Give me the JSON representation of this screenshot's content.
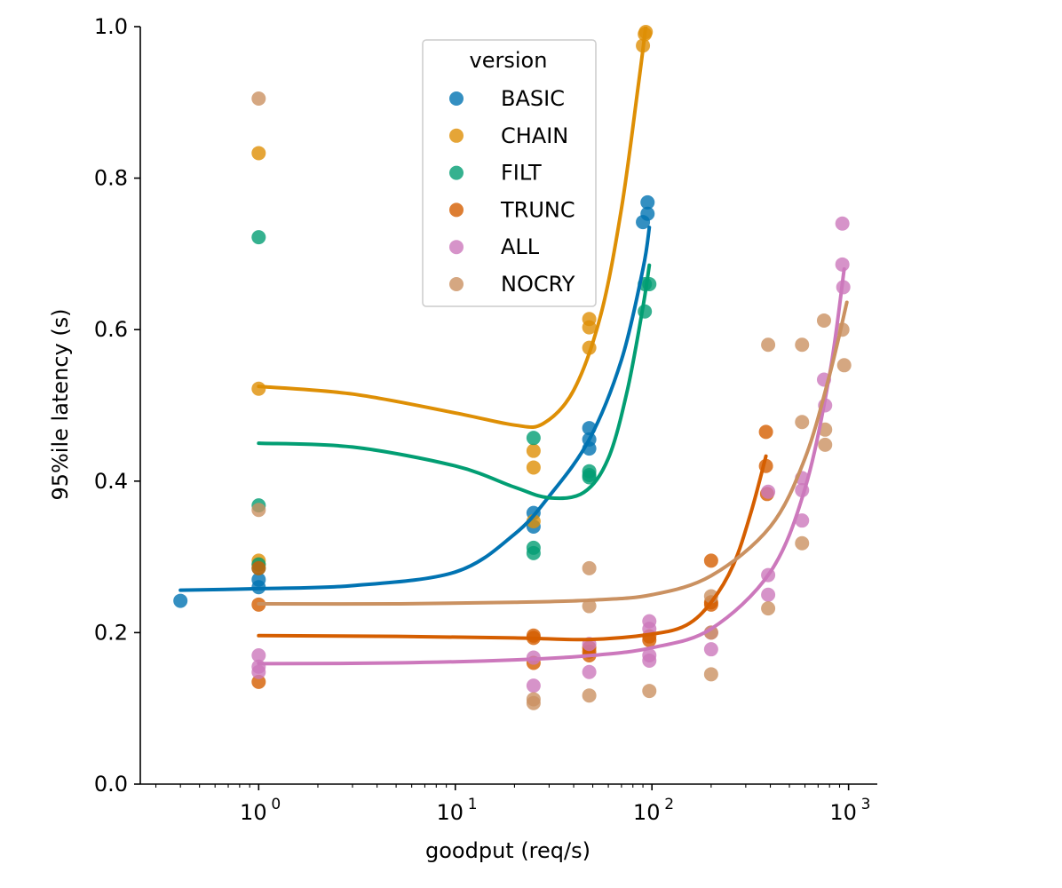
{
  "chart_data": {
    "type": "scatter",
    "title": "",
    "xlabel": "goodput (req/s)",
    "ylabel": "95%ile latency (s)",
    "xscale": "log",
    "xlim": [
      0.25,
      1400
    ],
    "ylim": [
      0,
      1.0
    ],
    "x_ticks": [
      {
        "value": 1,
        "base": "10",
        "exp": "0"
      },
      {
        "value": 10,
        "base": "10",
        "exp": "1"
      },
      {
        "value": 100,
        "base": "10",
        "exp": "2"
      },
      {
        "value": 1000,
        "base": "10",
        "exp": "3"
      }
    ],
    "y_ticks": [
      {
        "value": 0.0,
        "label": "0.0"
      },
      {
        "value": 0.2,
        "label": "0.2"
      },
      {
        "value": 0.4,
        "label": "0.4"
      },
      {
        "value": 0.6,
        "label": "0.6"
      },
      {
        "value": 0.8,
        "label": "0.8"
      },
      {
        "value": 1.0,
        "label": "1.0"
      }
    ],
    "grid": false,
    "legend": {
      "title": "version",
      "placement": "top-center"
    },
    "series": [
      {
        "name": "BASIC",
        "color": "#0173b2",
        "points": [
          [
            0.4,
            0.242
          ],
          [
            1,
            0.27
          ],
          [
            1,
            0.26
          ],
          [
            25,
            0.358
          ],
          [
            25,
            0.34
          ],
          [
            48,
            0.47
          ],
          [
            48,
            0.455
          ],
          [
            48,
            0.443
          ],
          [
            90,
            0.742
          ],
          [
            95,
            0.768
          ],
          [
            95,
            0.753
          ]
        ],
        "fit": [
          [
            0.4,
            0.256
          ],
          [
            1,
            0.258
          ],
          [
            3,
            0.262
          ],
          [
            10,
            0.28
          ],
          [
            20,
            0.33
          ],
          [
            30,
            0.38
          ],
          [
            48,
            0.455
          ],
          [
            70,
            0.56
          ],
          [
            90,
            0.68
          ],
          [
            97,
            0.735
          ]
        ]
      },
      {
        "name": "CHAIN",
        "color": "#de8f05",
        "points": [
          [
            1,
            0.833
          ],
          [
            1,
            0.522
          ],
          [
            1,
            0.295
          ],
          [
            1,
            0.29
          ],
          [
            25,
            0.44
          ],
          [
            25,
            0.418
          ],
          [
            25,
            0.347
          ],
          [
            48,
            0.614
          ],
          [
            48,
            0.603
          ],
          [
            48,
            0.576
          ],
          [
            90,
            0.975
          ],
          [
            92,
            0.99
          ],
          [
            93,
            0.993
          ]
        ],
        "fit": [
          [
            1,
            0.525
          ],
          [
            3,
            0.515
          ],
          [
            10,
            0.49
          ],
          [
            20,
            0.474
          ],
          [
            28,
            0.476
          ],
          [
            40,
            0.52
          ],
          [
            55,
            0.62
          ],
          [
            70,
            0.76
          ],
          [
            85,
            0.92
          ],
          [
            93,
            1.0
          ]
        ]
      },
      {
        "name": "FILT",
        "color": "#029e73",
        "points": [
          [
            1,
            0.722
          ],
          [
            1,
            0.368
          ],
          [
            1,
            0.29
          ],
          [
            1,
            0.285
          ],
          [
            25,
            0.457
          ],
          [
            25,
            0.312
          ],
          [
            25,
            0.305
          ],
          [
            48,
            0.413
          ],
          [
            48,
            0.408
          ],
          [
            48,
            0.405
          ],
          [
            92,
            0.66
          ],
          [
            92,
            0.624
          ],
          [
            97,
            0.66
          ]
        ],
        "fit": [
          [
            1,
            0.45
          ],
          [
            3,
            0.445
          ],
          [
            10,
            0.42
          ],
          [
            20,
            0.392
          ],
          [
            30,
            0.378
          ],
          [
            45,
            0.385
          ],
          [
            60,
            0.43
          ],
          [
            75,
            0.52
          ],
          [
            90,
            0.63
          ],
          [
            97,
            0.685
          ]
        ]
      },
      {
        "name": "TRUNC",
        "color": "#d55e00",
        "points": [
          [
            1,
            0.285
          ],
          [
            1,
            0.237
          ],
          [
            1,
            0.135
          ],
          [
            25,
            0.196
          ],
          [
            25,
            0.193
          ],
          [
            25,
            0.16
          ],
          [
            48,
            0.18
          ],
          [
            48,
            0.175
          ],
          [
            48,
            0.17
          ],
          [
            97,
            0.195
          ],
          [
            97,
            0.19
          ],
          [
            200,
            0.295
          ],
          [
            200,
            0.24
          ],
          [
            200,
            0.237
          ],
          [
            380,
            0.465
          ],
          [
            380,
            0.42
          ],
          [
            385,
            0.383
          ]
        ],
        "fit": [
          [
            1,
            0.196
          ],
          [
            5,
            0.195
          ],
          [
            20,
            0.193
          ],
          [
            48,
            0.191
          ],
          [
            100,
            0.198
          ],
          [
            150,
            0.21
          ],
          [
            200,
            0.24
          ],
          [
            260,
            0.29
          ],
          [
            320,
            0.36
          ],
          [
            380,
            0.433
          ]
        ]
      },
      {
        "name": "ALL",
        "color": "#cc78bc",
        "points": [
          [
            1,
            0.17
          ],
          [
            1,
            0.155
          ],
          [
            1,
            0.148
          ],
          [
            25,
            0.167
          ],
          [
            25,
            0.13
          ],
          [
            48,
            0.185
          ],
          [
            48,
            0.148
          ],
          [
            97,
            0.215
          ],
          [
            97,
            0.205
          ],
          [
            97,
            0.17
          ],
          [
            97,
            0.163
          ],
          [
            200,
            0.2
          ],
          [
            200,
            0.178
          ],
          [
            390,
            0.386
          ],
          [
            390,
            0.276
          ],
          [
            390,
            0.25
          ],
          [
            580,
            0.404
          ],
          [
            580,
            0.388
          ],
          [
            580,
            0.348
          ],
          [
            750,
            0.534
          ],
          [
            760,
            0.5
          ],
          [
            930,
            0.74
          ],
          [
            930,
            0.686
          ],
          [
            940,
            0.656
          ]
        ],
        "fit": [
          [
            1,
            0.159
          ],
          [
            5,
            0.16
          ],
          [
            20,
            0.164
          ],
          [
            50,
            0.17
          ],
          [
            100,
            0.18
          ],
          [
            200,
            0.205
          ],
          [
            400,
            0.28
          ],
          [
            600,
            0.39
          ],
          [
            800,
            0.54
          ],
          [
            950,
            0.68
          ]
        ]
      },
      {
        "name": "NOCRY",
        "color": "#ca9161",
        "points": [
          [
            1,
            0.905
          ],
          [
            1,
            0.362
          ],
          [
            25,
            0.112
          ],
          [
            25,
            0.107
          ],
          [
            48,
            0.285
          ],
          [
            48,
            0.235
          ],
          [
            48,
            0.117
          ],
          [
            97,
            0.123
          ],
          [
            200,
            0.248
          ],
          [
            200,
            0.2
          ],
          [
            200,
            0.145
          ],
          [
            390,
            0.58
          ],
          [
            390,
            0.232
          ],
          [
            580,
            0.58
          ],
          [
            580,
            0.478
          ],
          [
            580,
            0.318
          ],
          [
            750,
            0.612
          ],
          [
            760,
            0.468
          ],
          [
            760,
            0.448
          ],
          [
            930,
            0.6
          ],
          [
            950,
            0.553
          ]
        ],
        "fit": [
          [
            1,
            0.238
          ],
          [
            5,
            0.238
          ],
          [
            20,
            0.24
          ],
          [
            50,
            0.243
          ],
          [
            100,
            0.25
          ],
          [
            200,
            0.275
          ],
          [
            400,
            0.34
          ],
          [
            600,
            0.43
          ],
          [
            800,
            0.54
          ],
          [
            980,
            0.636
          ]
        ]
      }
    ]
  }
}
